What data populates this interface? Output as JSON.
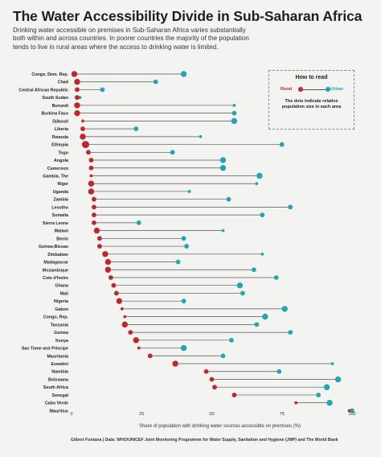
{
  "title": "The Water Accessibility Divide in Sub-Saharan Africa",
  "subtitle": "Drinking water accessible on premises in Sub-Saharan Africa varies substantially both within and across countries. In poorer countries the majority of the population tends to live in rural areas where the access to drinking water is limited.",
  "footer": "Gilbert Fontana | Data: WHO/UNICEF Joint Monitoring Programme for Water Supply, Sanitation and Hygiene (JMP) and The World Bank",
  "how_to_read": {
    "title": "How to read",
    "rural_label": "Rural",
    "urban_label": "Urban",
    "note": "The dots indicate relative population size in each area"
  },
  "colors": {
    "rural": "#c0272d",
    "urban": "#22a6b3",
    "line": "#555555",
    "text": "#1f1f1f",
    "background": "#f3f3f1"
  },
  "chart_data": {
    "type": "dumbbell",
    "xlabel": "Share of population with drinking water sources accessible on premises (%)",
    "xlim": [
      0,
      100
    ],
    "xticks": [
      0,
      25,
      50,
      75,
      100
    ],
    "grid": false,
    "series_names": [
      "Rural",
      "Urban"
    ],
    "rows": [
      {
        "country": "Congo, Dem. Rep.",
        "rural": 1,
        "urban": 40,
        "rural_size": 3,
        "urban_size": 3
      },
      {
        "country": "Chad",
        "rural": 2,
        "urban": 30,
        "rural_size": 3,
        "urban_size": 2
      },
      {
        "country": "Central African Republic",
        "rural": 2,
        "urban": 11,
        "rural_size": 2,
        "urban_size": 2
      },
      {
        "country": "South Sudan",
        "rural": 2,
        "urban": 3,
        "rural_size": 2,
        "urban_size": 1
      },
      {
        "country": "Burundi",
        "rural": 2,
        "urban": 58,
        "rural_size": 3,
        "urban_size": 1
      },
      {
        "country": "Burkina Faso",
        "rural": 2,
        "urban": 58,
        "rural_size": 3,
        "urban_size": 2
      },
      {
        "country": "Djibouti",
        "rural": 4,
        "urban": 58,
        "rural_size": 1,
        "urban_size": 3
      },
      {
        "country": "Liberia",
        "rural": 4,
        "urban": 23,
        "rural_size": 2,
        "urban_size": 2
      },
      {
        "country": "Rwanda",
        "rural": 4,
        "urban": 46,
        "rural_size": 3,
        "urban_size": 1
      },
      {
        "country": "Ethiopia",
        "rural": 5,
        "urban": 75,
        "rural_size": 4,
        "urban_size": 2
      },
      {
        "country": "Togo",
        "rural": 6,
        "urban": 36,
        "rural_size": 2,
        "urban_size": 2
      },
      {
        "country": "Angola",
        "rural": 7,
        "urban": 54,
        "rural_size": 2,
        "urban_size": 3
      },
      {
        "country": "Cameroon",
        "rural": 7,
        "urban": 54,
        "rural_size": 2,
        "urban_size": 3
      },
      {
        "country": "Gambia, The",
        "rural": 7,
        "urban": 67,
        "rural_size": 1,
        "urban_size": 3
      },
      {
        "country": "Niger",
        "rural": 7,
        "urban": 66,
        "rural_size": 3,
        "urban_size": 1
      },
      {
        "country": "Uganda",
        "rural": 7,
        "urban": 42,
        "rural_size": 3,
        "urban_size": 1
      },
      {
        "country": "Zambia",
        "rural": 8,
        "urban": 56,
        "rural_size": 2,
        "urban_size": 2
      },
      {
        "country": "Lesotho",
        "rural": 8,
        "urban": 78,
        "rural_size": 2,
        "urban_size": 2
      },
      {
        "country": "Somalia",
        "rural": 8,
        "urban": 68,
        "rural_size": 2,
        "urban_size": 2
      },
      {
        "country": "Sierra Leone",
        "rural": 8,
        "urban": 24,
        "rural_size": 2,
        "urban_size": 2
      },
      {
        "country": "Malawi",
        "rural": 9,
        "urban": 54,
        "rural_size": 3,
        "urban_size": 1
      },
      {
        "country": "Benin",
        "rural": 10,
        "urban": 40,
        "rural_size": 2,
        "urban_size": 2
      },
      {
        "country": "Guinea-Bissau",
        "rural": 10,
        "urban": 41,
        "rural_size": 2,
        "urban_size": 2
      },
      {
        "country": "Zimbabwe",
        "rural": 12,
        "urban": 68,
        "rural_size": 3,
        "urban_size": 1
      },
      {
        "country": "Madagascar",
        "rural": 13,
        "urban": 38,
        "rural_size": 3,
        "urban_size": 2
      },
      {
        "country": "Mozambique",
        "rural": 13,
        "urban": 65,
        "rural_size": 3,
        "urban_size": 2
      },
      {
        "country": "Cote d'Ivoire",
        "rural": 14,
        "urban": 73,
        "rural_size": 2,
        "urban_size": 2
      },
      {
        "country": "Ghana",
        "rural": 15,
        "urban": 60,
        "rural_size": 2,
        "urban_size": 3
      },
      {
        "country": "Mali",
        "rural": 16,
        "urban": 61,
        "rural_size": 2,
        "urban_size": 2
      },
      {
        "country": "Nigeria",
        "rural": 17,
        "urban": 40,
        "rural_size": 3,
        "urban_size": 2
      },
      {
        "country": "Gabon",
        "rural": 18,
        "urban": 76,
        "rural_size": 1,
        "urban_size": 3
      },
      {
        "country": "Congo, Rep.",
        "rural": 19,
        "urban": 69,
        "rural_size": 1,
        "urban_size": 3
      },
      {
        "country": "Tanzania",
        "rural": 19,
        "urban": 66,
        "rural_size": 3,
        "urban_size": 2
      },
      {
        "country": "Guinea",
        "rural": 21,
        "urban": 78,
        "rural_size": 2,
        "urban_size": 2
      },
      {
        "country": "Kenya",
        "rural": 23,
        "urban": 57,
        "rural_size": 3,
        "urban_size": 2
      },
      {
        "country": "Sao Tome and Principe",
        "rural": 24,
        "urban": 40,
        "rural_size": 1,
        "urban_size": 3
      },
      {
        "country": "Mauritania",
        "rural": 28,
        "urban": 54,
        "rural_size": 2,
        "urban_size": 2
      },
      {
        "country": "Eswatini",
        "rural": 37,
        "urban": 93,
        "rural_size": 3,
        "urban_size": 1
      },
      {
        "country": "Namibia",
        "rural": 48,
        "urban": 74,
        "rural_size": 2,
        "urban_size": 2
      },
      {
        "country": "Botswana",
        "rural": 50,
        "urban": 95,
        "rural_size": 2,
        "urban_size": 3
      },
      {
        "country": "South Africa",
        "rural": 51,
        "urban": 91,
        "rural_size": 2,
        "urban_size": 3
      },
      {
        "country": "Senegal",
        "rural": 58,
        "urban": 88,
        "rural_size": 2,
        "urban_size": 2
      },
      {
        "country": "Cabo Verde",
        "rural": 80,
        "urban": 92,
        "rural_size": 1,
        "urban_size": 3
      },
      {
        "country": "Mauritius",
        "rural": 99,
        "urban": 100,
        "rural_size": 1,
        "urban_size": 2
      }
    ]
  }
}
